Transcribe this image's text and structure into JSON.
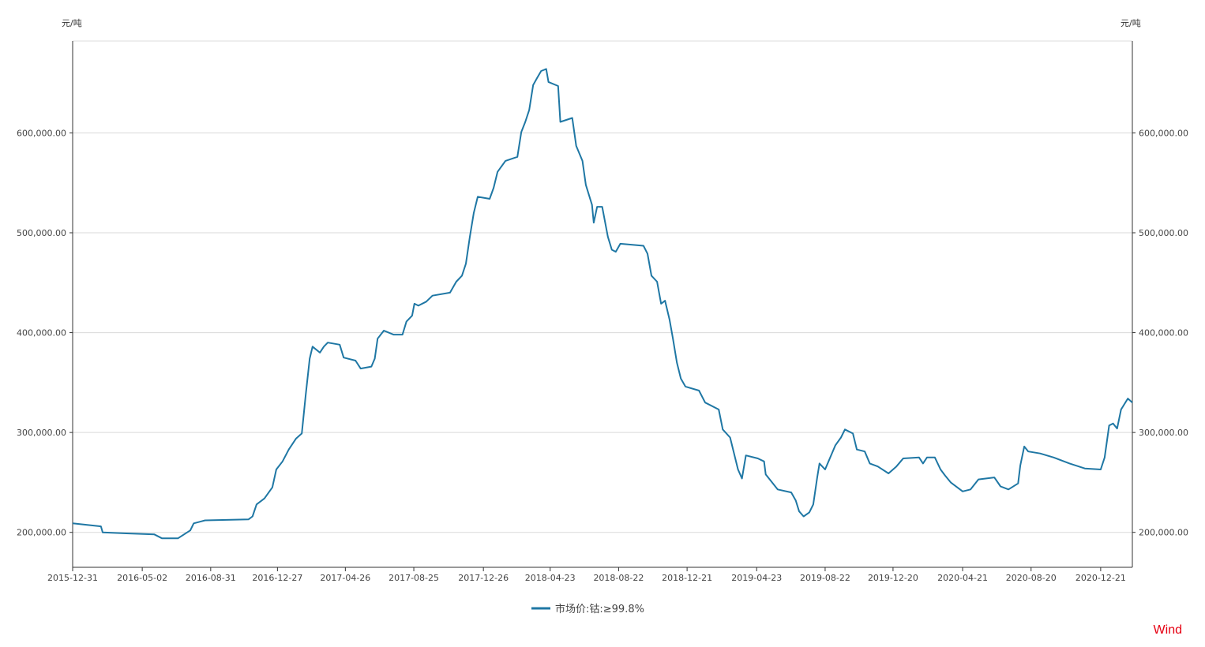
{
  "chart_data": {
    "type": "line",
    "title": "",
    "y_unit_left": "元/吨",
    "y_unit_right": "元/吨",
    "ylim": [
      165000,
      692000
    ],
    "xlim": [
      "2015-12-31",
      "2021-02-15"
    ],
    "y_ticks": [
      "200,000.00",
      "300,000.00",
      "400,000.00",
      "500,000.00",
      "600,000.00"
    ],
    "y_tick_values": [
      200000,
      300000,
      400000,
      500000,
      600000
    ],
    "x_ticks": [
      "2015-12-31",
      "2016-05-02",
      "2016-08-31",
      "2016-12-27",
      "2017-04-26",
      "2017-08-25",
      "2017-12-26",
      "2018-04-23",
      "2018-08-22",
      "2018-12-21",
      "2019-04-23",
      "2019-08-22",
      "2019-12-20",
      "2020-04-21",
      "2020-08-20",
      "2020-12-21"
    ],
    "grid": "horizontal",
    "legend_position": "bottom",
    "series": [
      {
        "name": "市场价:钴:≥99.8%",
        "color": "#1f77a4",
        "points": [
          [
            "2015-12-31",
            209000
          ],
          [
            "2016-02-19",
            206000
          ],
          [
            "2016-02-22",
            200000
          ],
          [
            "2016-04-04",
            199000
          ],
          [
            "2016-05-23",
            198000
          ],
          [
            "2016-06-06",
            194000
          ],
          [
            "2016-07-04",
            194000
          ],
          [
            "2016-07-26",
            202000
          ],
          [
            "2016-08-01",
            209000
          ],
          [
            "2016-08-21",
            212000
          ],
          [
            "2016-11-06",
            213000
          ],
          [
            "2016-11-13",
            216000
          ],
          [
            "2016-11-20",
            228000
          ],
          [
            "2016-12-04",
            234000
          ],
          [
            "2016-12-18",
            245000
          ],
          [
            "2016-12-25",
            263000
          ],
          [
            "2017-01-05",
            271000
          ],
          [
            "2017-01-16",
            283000
          ],
          [
            "2017-01-29",
            294000
          ],
          [
            "2017-02-08",
            299000
          ],
          [
            "2017-02-15",
            338000
          ],
          [
            "2017-02-22",
            374000
          ],
          [
            "2017-02-27",
            386000
          ],
          [
            "2017-03-12",
            380000
          ],
          [
            "2017-03-19",
            386000
          ],
          [
            "2017-03-26",
            390000
          ],
          [
            "2017-04-16",
            388000
          ],
          [
            "2017-04-23",
            375000
          ],
          [
            "2017-05-14",
            372000
          ],
          [
            "2017-05-23",
            364000
          ],
          [
            "2017-06-11",
            366000
          ],
          [
            "2017-06-17",
            374000
          ],
          [
            "2017-06-22",
            394000
          ],
          [
            "2017-07-03",
            402000
          ],
          [
            "2017-07-20",
            398000
          ],
          [
            "2017-08-05",
            398000
          ],
          [
            "2017-08-12",
            411000
          ],
          [
            "2017-08-22",
            417000
          ],
          [
            "2017-08-26",
            429000
          ],
          [
            "2017-09-02",
            427000
          ],
          [
            "2017-09-16",
            431000
          ],
          [
            "2017-09-27",
            437000
          ],
          [
            "2017-10-28",
            440000
          ],
          [
            "2017-11-08",
            451000
          ],
          [
            "2017-11-18",
            457000
          ],
          [
            "2017-11-25",
            469000
          ],
          [
            "2017-12-02",
            496000
          ],
          [
            "2017-12-09",
            520000
          ],
          [
            "2017-12-16",
            536000
          ],
          [
            "2018-01-06",
            534000
          ],
          [
            "2018-01-13",
            545000
          ],
          [
            "2018-01-20",
            561000
          ],
          [
            "2018-02-03",
            572000
          ],
          [
            "2018-02-24",
            576000
          ],
          [
            "2018-03-03",
            601000
          ],
          [
            "2018-03-10",
            611000
          ],
          [
            "2018-03-17",
            623000
          ],
          [
            "2018-03-24",
            648000
          ],
          [
            "2018-03-31",
            655000
          ],
          [
            "2018-04-07",
            662000
          ],
          [
            "2018-04-16",
            664000
          ],
          [
            "2018-04-20",
            651000
          ],
          [
            "2018-05-07",
            647000
          ],
          [
            "2018-05-11",
            611000
          ],
          [
            "2018-06-01",
            615000
          ],
          [
            "2018-06-08",
            587000
          ],
          [
            "2018-06-19",
            572000
          ],
          [
            "2018-06-25",
            548000
          ],
          [
            "2018-07-06",
            528000
          ],
          [
            "2018-07-09",
            510000
          ],
          [
            "2018-07-15",
            526000
          ],
          [
            "2018-07-24",
            526000
          ],
          [
            "2018-08-03",
            496000
          ],
          [
            "2018-08-10",
            483000
          ],
          [
            "2018-08-17",
            481000
          ],
          [
            "2018-08-25",
            489000
          ],
          [
            "2018-10-05",
            487000
          ],
          [
            "2018-10-12",
            479000
          ],
          [
            "2018-10-19",
            457000
          ],
          [
            "2018-10-29",
            451000
          ],
          [
            "2018-11-05",
            429000
          ],
          [
            "2018-11-12",
            432000
          ],
          [
            "2018-11-20",
            413000
          ],
          [
            "2018-11-26",
            394000
          ],
          [
            "2018-12-03",
            370000
          ],
          [
            "2018-12-10",
            354000
          ],
          [
            "2018-12-18",
            346000
          ],
          [
            "2019-01-11",
            342000
          ],
          [
            "2019-01-22",
            330000
          ],
          [
            "2019-02-15",
            323000
          ],
          [
            "2019-02-22",
            303000
          ],
          [
            "2019-03-07",
            295000
          ],
          [
            "2019-03-21",
            263000
          ],
          [
            "2019-03-28",
            254000
          ],
          [
            "2019-04-04",
            277000
          ],
          [
            "2019-04-25",
            274000
          ],
          [
            "2019-05-06",
            271000
          ],
          [
            "2019-05-09",
            258000
          ],
          [
            "2019-05-30",
            243000
          ],
          [
            "2019-06-23",
            240000
          ],
          [
            "2019-07-01",
            232000
          ],
          [
            "2019-07-07",
            221000
          ],
          [
            "2019-07-15",
            216000
          ],
          [
            "2019-07-25",
            220000
          ],
          [
            "2019-08-01",
            228000
          ],
          [
            "2019-08-08",
            255000
          ],
          [
            "2019-08-12",
            269000
          ],
          [
            "2019-08-22",
            263000
          ],
          [
            "2019-09-09",
            287000
          ],
          [
            "2019-09-19",
            295000
          ],
          [
            "2019-09-26",
            303000
          ],
          [
            "2019-10-10",
            299000
          ],
          [
            "2019-10-17",
            283000
          ],
          [
            "2019-10-31",
            281000
          ],
          [
            "2019-11-09",
            269000
          ],
          [
            "2019-11-23",
            266000
          ],
          [
            "2019-12-12",
            259000
          ],
          [
            "2019-12-26",
            266000
          ],
          [
            "2020-01-07",
            274000
          ],
          [
            "2020-02-04",
            275000
          ],
          [
            "2020-02-11",
            269000
          ],
          [
            "2020-02-18",
            275000
          ],
          [
            "2020-03-03",
            275000
          ],
          [
            "2020-03-13",
            263000
          ],
          [
            "2020-03-21",
            257000
          ],
          [
            "2020-03-31",
            250000
          ],
          [
            "2020-04-21",
            241000
          ],
          [
            "2020-05-05",
            243000
          ],
          [
            "2020-05-19",
            253000
          ],
          [
            "2020-06-16",
            255000
          ],
          [
            "2020-06-27",
            246000
          ],
          [
            "2020-07-11",
            243000
          ],
          [
            "2020-07-28",
            249000
          ],
          [
            "2020-08-01",
            267000
          ],
          [
            "2020-08-08",
            286000
          ],
          [
            "2020-08-15",
            281000
          ],
          [
            "2020-09-05",
            279000
          ],
          [
            "2020-09-29",
            275000
          ],
          [
            "2020-10-27",
            269000
          ],
          [
            "2020-11-23",
            264000
          ],
          [
            "2020-12-21",
            263000
          ],
          [
            "2020-12-28",
            275000
          ],
          [
            "2021-01-05",
            307000
          ],
          [
            "2021-01-12",
            309000
          ],
          [
            "2021-01-19",
            304000
          ],
          [
            "2021-01-26",
            323000
          ],
          [
            "2021-02-07",
            334000
          ],
          [
            "2021-02-15",
            330000
          ]
        ]
      }
    ]
  },
  "branding": {
    "watermark": "Wind",
    "color": "#e60012"
  }
}
